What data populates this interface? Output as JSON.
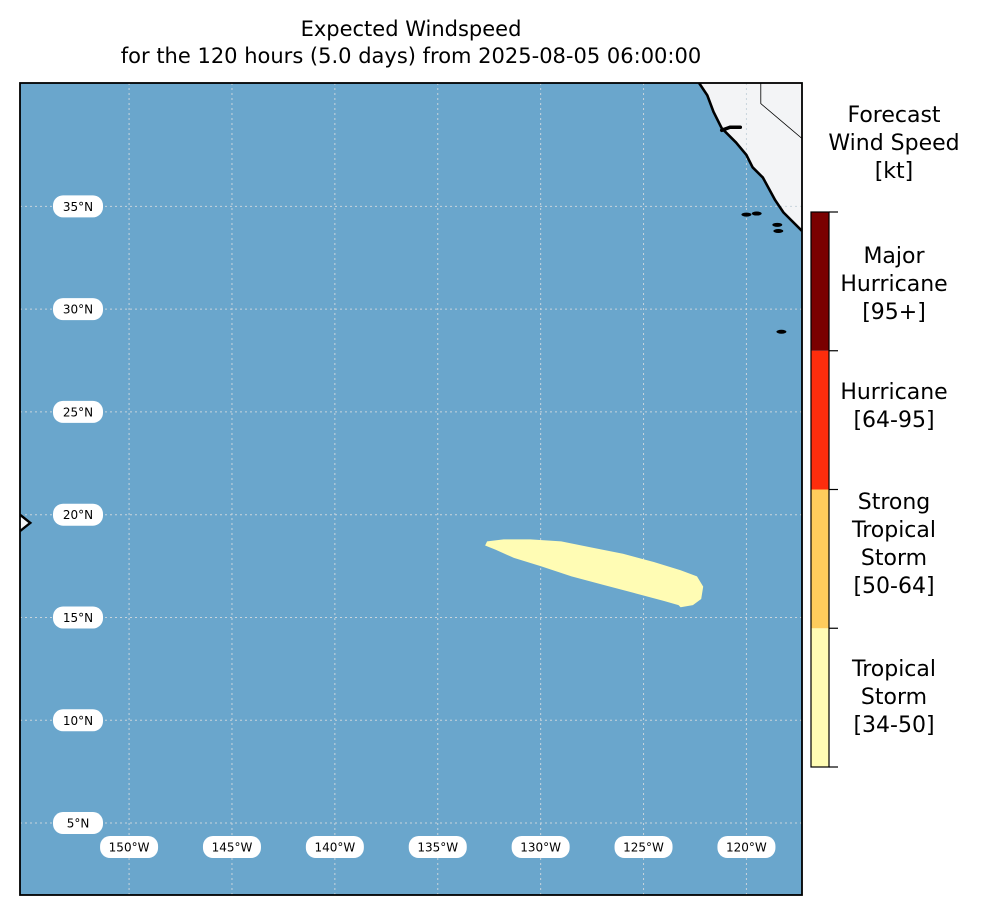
{
  "title": {
    "line1": "Expected Windspeed",
    "line2": "for the 120 hours (5.0 days) from 2025-08-05 06:00:00"
  },
  "colors": {
    "ocean": "#6aa6cc",
    "land": "#f3f4f6",
    "tropical_storm": "#fffcb4",
    "strong_tropical_storm": "#fecc5c",
    "hurricane": "#fd2d0d",
    "major_hurricane": "#7a0000",
    "gridline": "#c8d4dc"
  },
  "colorbar": {
    "title": [
      "Forecast",
      "Wind Speed",
      "[kt]"
    ],
    "categories": [
      {
        "key": "tropical_storm",
        "lines": [
          "Tropical",
          "Storm",
          "[34-50]"
        ]
      },
      {
        "key": "strong_tropical_storm",
        "lines": [
          "Strong",
          "Tropical",
          "Storm",
          "[50-64]"
        ]
      },
      {
        "key": "hurricane",
        "lines": [
          "Hurricane",
          "[64-95]"
        ]
      },
      {
        "key": "major_hurricane",
        "lines": [
          "Major",
          "Hurricane",
          "[95+]"
        ]
      }
    ]
  },
  "map": {
    "lon_range": [
      -155.3,
      -117.3
    ],
    "lat_range": [
      1.5,
      41.0
    ],
    "lat_ticks": [
      {
        "value": 35,
        "label": "35°N"
      },
      {
        "value": 30,
        "label": "30°N"
      },
      {
        "value": 25,
        "label": "25°N"
      },
      {
        "value": 20,
        "label": "20°N"
      },
      {
        "value": 15,
        "label": "15°N"
      },
      {
        "value": 10,
        "label": "10°N"
      },
      {
        "value": 5,
        "label": "5°N"
      }
    ],
    "lon_ticks": [
      {
        "value": -150,
        "label": "150°W"
      },
      {
        "value": -145,
        "label": "145°W"
      },
      {
        "value": -140,
        "label": "140°W"
      },
      {
        "value": -135,
        "label": "135°W"
      },
      {
        "value": -130,
        "label": "130°W"
      },
      {
        "value": -125,
        "label": "125°W"
      },
      {
        "value": -120,
        "label": "120°W"
      }
    ],
    "wind_swath": {
      "category": "tropical_storm",
      "outline": [
        [
          -132.6,
          18.7
        ],
        [
          -131.8,
          18.8
        ],
        [
          -130.5,
          18.8
        ],
        [
          -129.0,
          18.7
        ],
        [
          -127.5,
          18.4
        ],
        [
          -126.0,
          18.1
        ],
        [
          -124.5,
          17.7
        ],
        [
          -123.2,
          17.3
        ],
        [
          -122.4,
          17.0
        ],
        [
          -122.1,
          16.5
        ],
        [
          -122.2,
          15.9
        ],
        [
          -122.6,
          15.6
        ],
        [
          -123.2,
          15.5
        ],
        [
          -123.3,
          15.6
        ],
        [
          -124.0,
          15.8
        ],
        [
          -125.5,
          16.2
        ],
        [
          -127.0,
          16.6
        ],
        [
          -128.5,
          17.0
        ],
        [
          -130.0,
          17.5
        ],
        [
          -131.3,
          17.9
        ],
        [
          -132.2,
          18.3
        ],
        [
          -132.7,
          18.5
        ]
      ]
    },
    "coastline": [
      [
        -122.3,
        41.0
      ],
      [
        -121.9,
        40.4
      ],
      [
        -121.6,
        39.6
      ],
      [
        -121.2,
        38.8
      ],
      [
        -120.5,
        38.1
      ],
      [
        -120.0,
        37.5
      ],
      [
        -119.7,
        36.9
      ],
      [
        -119.2,
        36.4
      ],
      [
        -118.6,
        35.3
      ],
      [
        -118.2,
        34.7
      ],
      [
        -117.3,
        33.8
      ]
    ],
    "bay_outline": [
      [
        -121.2,
        38.7
      ],
      [
        -120.8,
        38.85
      ],
      [
        -120.3,
        38.85
      ]
    ],
    "state_boundary": [
      [
        -119.3,
        41.0
      ],
      [
        -119.3,
        40.0
      ],
      [
        -117.3,
        38.3
      ]
    ],
    "islands": [
      [
        -120.0,
        34.6
      ],
      [
        -119.5,
        34.65
      ],
      [
        -118.5,
        34.1
      ],
      [
        -118.45,
        33.8
      ],
      [
        -118.3,
        28.9
      ]
    ],
    "hawaii_coast": [
      [
        -155.3,
        20.0
      ],
      [
        -154.8,
        19.6
      ],
      [
        -155.3,
        19.2
      ]
    ]
  }
}
